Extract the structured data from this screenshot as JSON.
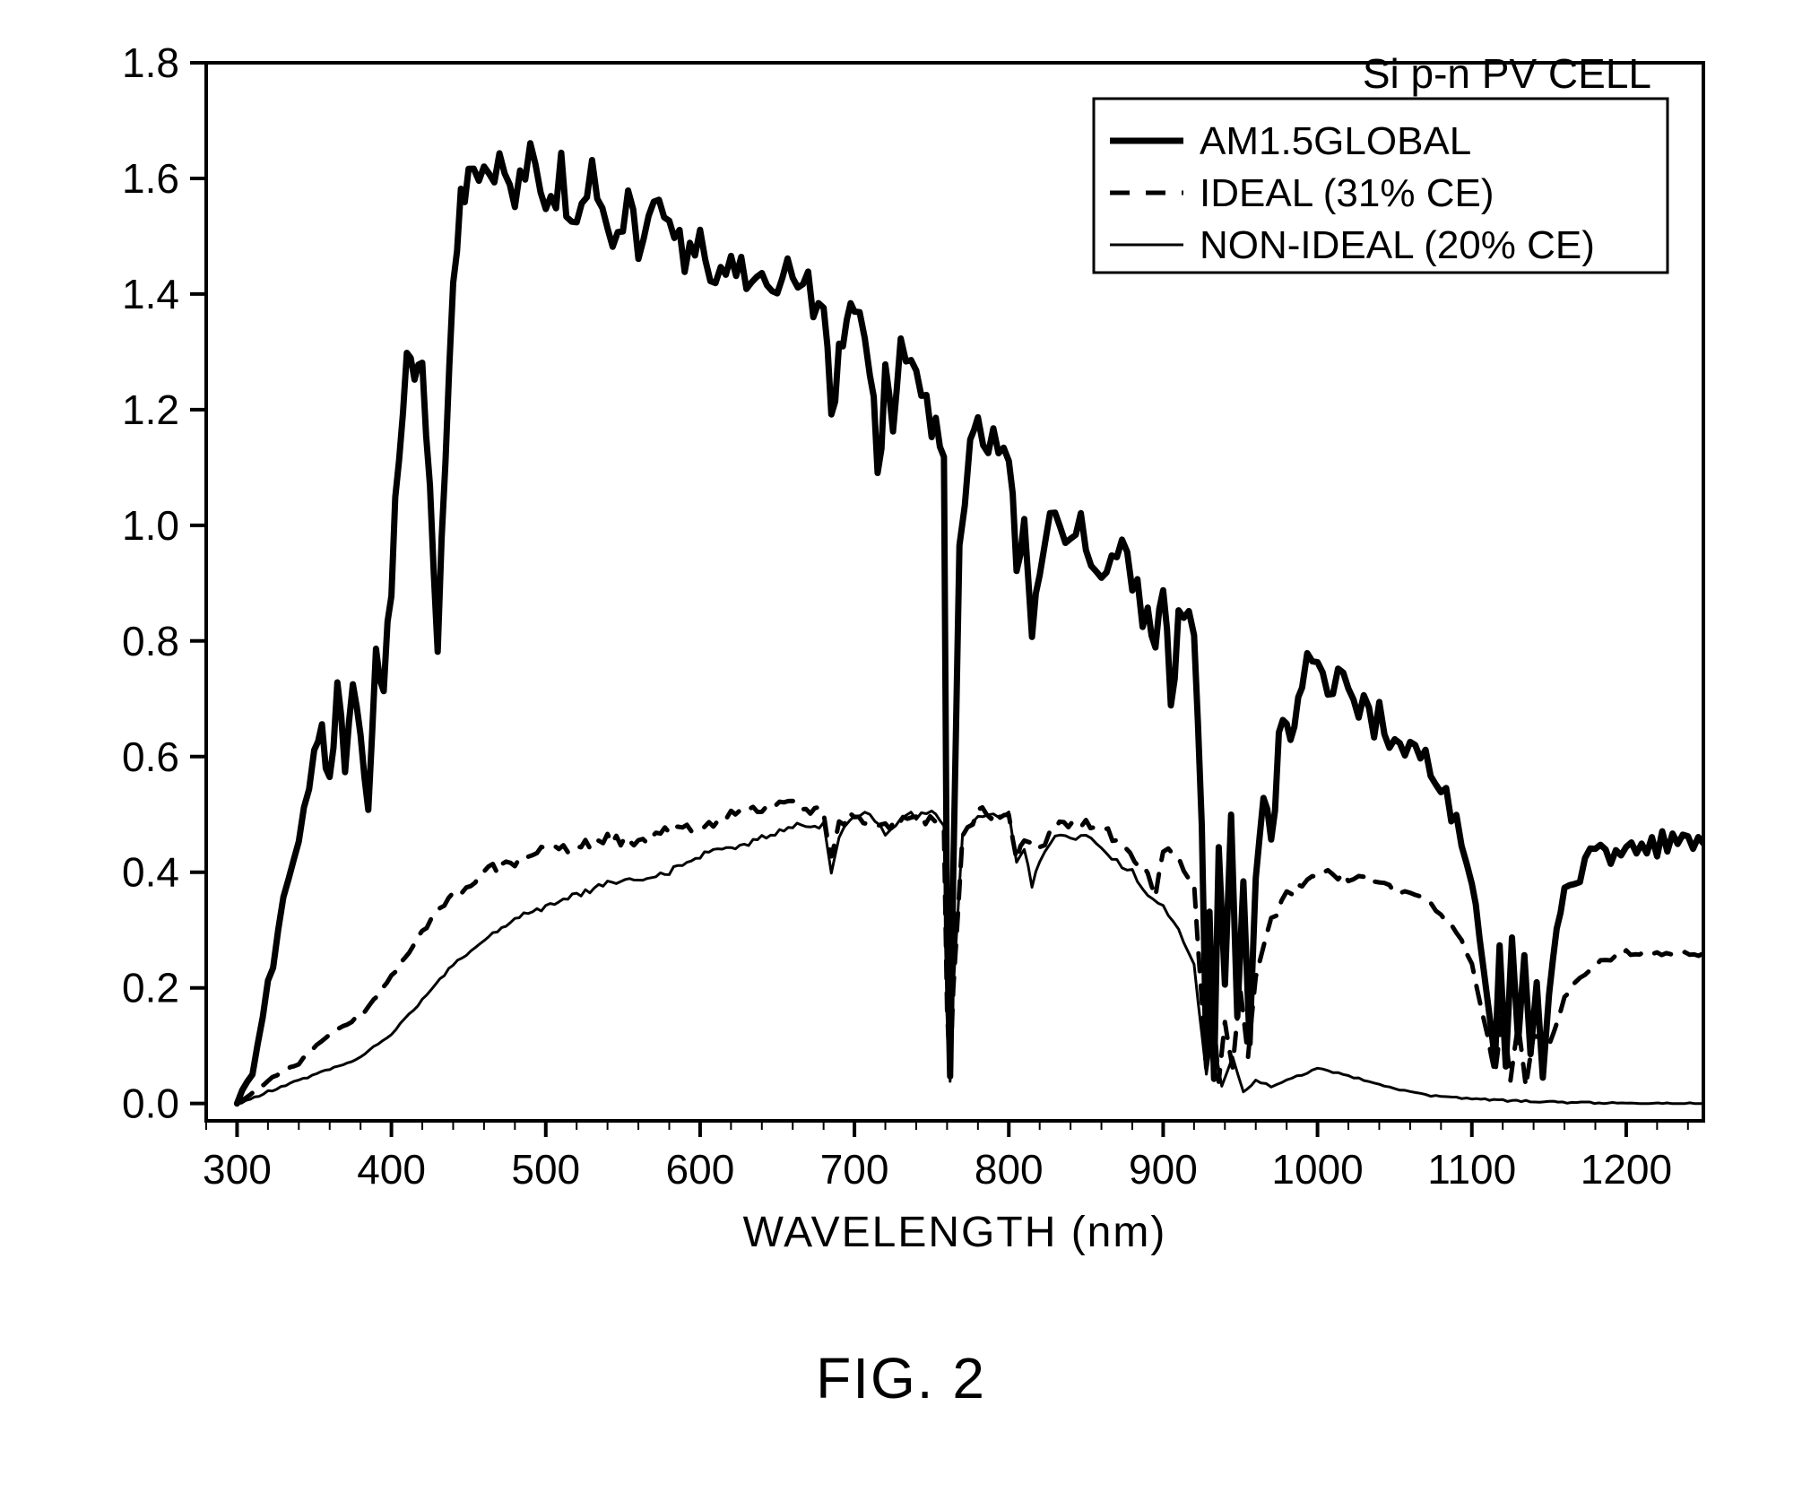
{
  "figure_caption": "FIG. 2",
  "chart": {
    "type": "line",
    "background_color": "#ffffff",
    "axis_color": "#000000",
    "axis_linewidth": 4,
    "tick_fontsize": 46,
    "axislabel_fontsize": 48,
    "xlabel": "WAVELENGTH (nm)",
    "xlim": [
      280,
      1250
    ],
    "xtick_start": 300,
    "xtick_step": 100,
    "xtick_end": 1200,
    "ylim": [
      -0.03,
      1.8
    ],
    "ytick_start": 0.0,
    "ytick_step": 0.2,
    "ytick_end": 1.8,
    "ytick_decimals": 1,
    "legend": {
      "title": "Si p-n PV CELL",
      "box_color": "#000000",
      "box_linewidth": 3,
      "title_fontsize": 46,
      "label_fontsize": 44,
      "items": [
        {
          "label": "AM1.5GLOBAL",
          "stroke": "#000000",
          "width": 7,
          "dash": ""
        },
        {
          "label": "IDEAL (31% CE)",
          "stroke": "#000000",
          "width": 5,
          "dash": "22 18"
        },
        {
          "label": "NON-IDEAL (20% CE)",
          "stroke": "#000000",
          "width": 3,
          "dash": ""
        }
      ]
    },
    "series": {
      "am15": {
        "stroke": "#000000",
        "width": 7,
        "dash": "",
        "noise_amp": 0.08,
        "noise_freq": 2.2,
        "points": [
          [
            300,
            0.0
          ],
          [
            310,
            0.05
          ],
          [
            320,
            0.2
          ],
          [
            330,
            0.35
          ],
          [
            340,
            0.45
          ],
          [
            350,
            0.6
          ],
          [
            355,
            0.68
          ],
          [
            360,
            0.55
          ],
          [
            365,
            0.7
          ],
          [
            370,
            0.58
          ],
          [
            375,
            0.72
          ],
          [
            380,
            0.62
          ],
          [
            385,
            0.5
          ],
          [
            390,
            0.78
          ],
          [
            395,
            0.72
          ],
          [
            400,
            0.9
          ],
          [
            405,
            1.1
          ],
          [
            410,
            1.3
          ],
          [
            415,
            1.22
          ],
          [
            420,
            1.3
          ],
          [
            425,
            1.06
          ],
          [
            430,
            0.8
          ],
          [
            435,
            1.1
          ],
          [
            440,
            1.42
          ],
          [
            445,
            1.55
          ],
          [
            450,
            1.6
          ],
          [
            460,
            1.58
          ],
          [
            470,
            1.62
          ],
          [
            480,
            1.58
          ],
          [
            490,
            1.64
          ],
          [
            500,
            1.56
          ],
          [
            510,
            1.6
          ],
          [
            520,
            1.52
          ],
          [
            530,
            1.58
          ],
          [
            540,
            1.5
          ],
          [
            550,
            1.55
          ],
          [
            560,
            1.48
          ],
          [
            570,
            1.52
          ],
          [
            580,
            1.5
          ],
          [
            590,
            1.46
          ],
          [
            600,
            1.5
          ],
          [
            610,
            1.44
          ],
          [
            620,
            1.48
          ],
          [
            630,
            1.44
          ],
          [
            640,
            1.46
          ],
          [
            650,
            1.4
          ],
          [
            660,
            1.42
          ],
          [
            670,
            1.4
          ],
          [
            680,
            1.36
          ],
          [
            685,
            1.2
          ],
          [
            690,
            1.3
          ],
          [
            695,
            1.36
          ],
          [
            700,
            1.34
          ],
          [
            710,
            1.3
          ],
          [
            715,
            1.1
          ],
          [
            720,
            1.24
          ],
          [
            725,
            1.14
          ],
          [
            730,
            1.28
          ],
          [
            740,
            1.24
          ],
          [
            750,
            1.2
          ],
          [
            758,
            1.14
          ],
          [
            760,
            0.3
          ],
          [
            762,
            0.05
          ],
          [
            764,
            0.4
          ],
          [
            768,
            1.0
          ],
          [
            775,
            1.14
          ],
          [
            780,
            1.18
          ],
          [
            790,
            1.14
          ],
          [
            800,
            1.12
          ],
          [
            805,
            0.96
          ],
          [
            810,
            1.0
          ],
          [
            815,
            0.82
          ],
          [
            820,
            0.96
          ],
          [
            830,
            1.02
          ],
          [
            840,
            1.0
          ],
          [
            850,
            0.98
          ],
          [
            860,
            0.92
          ],
          [
            870,
            0.96
          ],
          [
            880,
            0.92
          ],
          [
            890,
            0.84
          ],
          [
            895,
            0.78
          ],
          [
            900,
            0.9
          ],
          [
            905,
            0.72
          ],
          [
            910,
            0.86
          ],
          [
            920,
            0.8
          ],
          [
            925,
            0.5
          ],
          [
            928,
            0.08
          ],
          [
            930,
            0.35
          ],
          [
            933,
            0.05
          ],
          [
            936,
            0.45
          ],
          [
            940,
            0.2
          ],
          [
            944,
            0.48
          ],
          [
            948,
            0.15
          ],
          [
            952,
            0.4
          ],
          [
            956,
            0.1
          ],
          [
            960,
            0.38
          ],
          [
            965,
            0.55
          ],
          [
            970,
            0.45
          ],
          [
            975,
            0.62
          ],
          [
            980,
            0.68
          ],
          [
            985,
            0.66
          ],
          [
            990,
            0.72
          ],
          [
            1000,
            0.74
          ],
          [
            1010,
            0.72
          ],
          [
            1020,
            0.7
          ],
          [
            1030,
            0.68
          ],
          [
            1040,
            0.66
          ],
          [
            1050,
            0.62
          ],
          [
            1060,
            0.6
          ],
          [
            1070,
            0.58
          ],
          [
            1080,
            0.54
          ],
          [
            1090,
            0.48
          ],
          [
            1100,
            0.4
          ],
          [
            1105,
            0.3
          ],
          [
            1110,
            0.18
          ],
          [
            1115,
            0.08
          ],
          [
            1118,
            0.28
          ],
          [
            1122,
            0.06
          ],
          [
            1126,
            0.3
          ],
          [
            1130,
            0.1
          ],
          [
            1134,
            0.26
          ],
          [
            1138,
            0.08
          ],
          [
            1142,
            0.22
          ],
          [
            1146,
            0.05
          ],
          [
            1150,
            0.2
          ],
          [
            1155,
            0.3
          ],
          [
            1160,
            0.36
          ],
          [
            1170,
            0.4
          ],
          [
            1180,
            0.44
          ],
          [
            1190,
            0.43
          ],
          [
            1200,
            0.45
          ],
          [
            1210,
            0.44
          ],
          [
            1220,
            0.46
          ],
          [
            1230,
            0.45
          ],
          [
            1240,
            0.46
          ],
          [
            1250,
            0.45
          ]
        ]
      },
      "ideal": {
        "stroke": "#000000",
        "width": 5,
        "dash": "20 16",
        "noise_amp": 0.03,
        "noise_freq": 1.8,
        "points": [
          [
            300,
            0.0
          ],
          [
            320,
            0.04
          ],
          [
            340,
            0.07
          ],
          [
            360,
            0.12
          ],
          [
            380,
            0.15
          ],
          [
            400,
            0.22
          ],
          [
            420,
            0.3
          ],
          [
            440,
            0.36
          ],
          [
            460,
            0.4
          ],
          [
            480,
            0.42
          ],
          [
            500,
            0.44
          ],
          [
            520,
            0.44
          ],
          [
            540,
            0.46
          ],
          [
            560,
            0.45
          ],
          [
            580,
            0.48
          ],
          [
            600,
            0.47
          ],
          [
            620,
            0.5
          ],
          [
            640,
            0.51
          ],
          [
            660,
            0.52
          ],
          [
            680,
            0.5
          ],
          [
            685,
            0.42
          ],
          [
            690,
            0.48
          ],
          [
            700,
            0.5
          ],
          [
            720,
            0.48
          ],
          [
            740,
            0.5
          ],
          [
            758,
            0.48
          ],
          [
            760,
            0.16
          ],
          [
            762,
            0.05
          ],
          [
            764,
            0.2
          ],
          [
            770,
            0.46
          ],
          [
            780,
            0.5
          ],
          [
            800,
            0.5
          ],
          [
            805,
            0.42
          ],
          [
            810,
            0.46
          ],
          [
            820,
            0.44
          ],
          [
            830,
            0.48
          ],
          [
            850,
            0.48
          ],
          [
            870,
            0.46
          ],
          [
            890,
            0.4
          ],
          [
            895,
            0.36
          ],
          [
            900,
            0.44
          ],
          [
            910,
            0.42
          ],
          [
            920,
            0.38
          ],
          [
            928,
            0.06
          ],
          [
            932,
            0.18
          ],
          [
            936,
            0.04
          ],
          [
            940,
            0.14
          ],
          [
            945,
            0.06
          ],
          [
            950,
            0.2
          ],
          [
            955,
            0.08
          ],
          [
            960,
            0.22
          ],
          [
            970,
            0.32
          ],
          [
            980,
            0.36
          ],
          [
            990,
            0.38
          ],
          [
            1000,
            0.4
          ],
          [
            1010,
            0.4
          ],
          [
            1020,
            0.39
          ],
          [
            1030,
            0.39
          ],
          [
            1040,
            0.38
          ],
          [
            1050,
            0.37
          ],
          [
            1060,
            0.36
          ],
          [
            1070,
            0.35
          ],
          [
            1080,
            0.33
          ],
          [
            1090,
            0.3
          ],
          [
            1100,
            0.24
          ],
          [
            1110,
            0.12
          ],
          [
            1115,
            0.05
          ],
          [
            1120,
            0.16
          ],
          [
            1125,
            0.04
          ],
          [
            1130,
            0.14
          ],
          [
            1135,
            0.03
          ],
          [
            1140,
            0.12
          ],
          [
            1150,
            0.1
          ],
          [
            1160,
            0.18
          ],
          [
            1170,
            0.22
          ],
          [
            1180,
            0.24
          ],
          [
            1190,
            0.25
          ],
          [
            1200,
            0.26
          ],
          [
            1220,
            0.26
          ],
          [
            1250,
            0.26
          ]
        ]
      },
      "nonideal": {
        "stroke": "#000000",
        "width": 3,
        "dash": "",
        "noise_amp": 0.02,
        "noise_freq": 1.6,
        "points": [
          [
            300,
            0.0
          ],
          [
            320,
            0.02
          ],
          [
            340,
            0.04
          ],
          [
            360,
            0.06
          ],
          [
            380,
            0.08
          ],
          [
            400,
            0.12
          ],
          [
            420,
            0.18
          ],
          [
            440,
            0.24
          ],
          [
            460,
            0.28
          ],
          [
            480,
            0.32
          ],
          [
            500,
            0.34
          ],
          [
            520,
            0.36
          ],
          [
            540,
            0.38
          ],
          [
            560,
            0.39
          ],
          [
            580,
            0.4
          ],
          [
            600,
            0.43
          ],
          [
            620,
            0.44
          ],
          [
            640,
            0.46
          ],
          [
            660,
            0.48
          ],
          [
            680,
            0.48
          ],
          [
            685,
            0.4
          ],
          [
            690,
            0.46
          ],
          [
            700,
            0.5
          ],
          [
            710,
            0.5
          ],
          [
            720,
            0.46
          ],
          [
            730,
            0.5
          ],
          [
            740,
            0.5
          ],
          [
            750,
            0.5
          ],
          [
            758,
            0.48
          ],
          [
            760,
            0.15
          ],
          [
            762,
            0.04
          ],
          [
            764,
            0.2
          ],
          [
            770,
            0.46
          ],
          [
            780,
            0.5
          ],
          [
            790,
            0.5
          ],
          [
            800,
            0.5
          ],
          [
            805,
            0.42
          ],
          [
            810,
            0.44
          ],
          [
            815,
            0.38
          ],
          [
            820,
            0.42
          ],
          [
            830,
            0.46
          ],
          [
            840,
            0.46
          ],
          [
            850,
            0.46
          ],
          [
            860,
            0.44
          ],
          [
            870,
            0.42
          ],
          [
            880,
            0.4
          ],
          [
            890,
            0.36
          ],
          [
            900,
            0.34
          ],
          [
            910,
            0.3
          ],
          [
            920,
            0.24
          ],
          [
            928,
            0.05
          ],
          [
            932,
            0.12
          ],
          [
            938,
            0.03
          ],
          [
            945,
            0.08
          ],
          [
            952,
            0.02
          ],
          [
            960,
            0.04
          ],
          [
            970,
            0.03
          ],
          [
            980,
            0.04
          ],
          [
            990,
            0.05
          ],
          [
            1000,
            0.06
          ],
          [
            1010,
            0.055
          ],
          [
            1020,
            0.048
          ],
          [
            1030,
            0.04
          ],
          [
            1040,
            0.032
          ],
          [
            1050,
            0.025
          ],
          [
            1060,
            0.02
          ],
          [
            1070,
            0.015
          ],
          [
            1080,
            0.012
          ],
          [
            1090,
            0.01
          ],
          [
            1100,
            0.008
          ],
          [
            1120,
            0.005
          ],
          [
            1150,
            0.003
          ],
          [
            1200,
            0.0
          ],
          [
            1250,
            0.0
          ]
        ]
      }
    }
  }
}
